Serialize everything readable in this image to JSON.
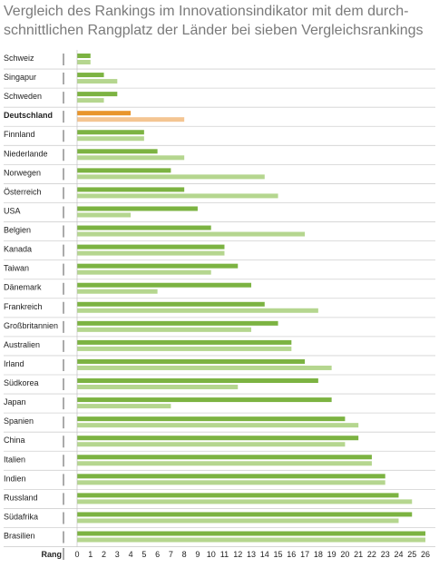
{
  "title_line1": "Vergleich des Rankings im Innovationsindikator mit dem durch-",
  "title_line2": "schnittlichen Rangplatz der Länder bei sieben Vergleichsrankings",
  "colors": {
    "primary": "#7cb342",
    "secondary": "#b5d68f",
    "highlight_primary": "#e8952c",
    "highlight_secondary": "#f4c592",
    "separator": "#d0d0d0"
  },
  "chart_data": {
    "type": "bar",
    "orientation": "horizontal",
    "title": "Vergleich des Rankings im Innovationsindikator mit dem durch-schnittlichen Rangplatz der Länder bei sieben Vergleichsrankings",
    "xlabel": "Rang",
    "xlim": [
      0,
      26
    ],
    "xticks": [
      0,
      1,
      2,
      3,
      4,
      5,
      6,
      7,
      8,
      9,
      10,
      11,
      12,
      13,
      14,
      15,
      16,
      17,
      18,
      19,
      20,
      21,
      22,
      23,
      24,
      25,
      26
    ],
    "highlight": "Deutschland",
    "categories": [
      "Schweiz",
      "Singapur",
      "Schweden",
      "Deutschland",
      "Finnland",
      "Niederlande",
      "Norwegen",
      "Österreich",
      "USA",
      "Belgien",
      "Kanada",
      "Taiwan",
      "Dänemark",
      "Frankreich",
      "Großbritannien",
      "Australien",
      "Irland",
      "Südkorea",
      "Japan",
      "Spanien",
      "China",
      "Italien",
      "Indien",
      "Russland",
      "Südafrika",
      "Brasilien"
    ],
    "series": [
      {
        "values": [
          1,
          2,
          3,
          4,
          5,
          6,
          7,
          8,
          9,
          10,
          11,
          12,
          13,
          14,
          15,
          16,
          17,
          18,
          19,
          20,
          21,
          22,
          23,
          24,
          25,
          26
        ]
      },
      {
        "values": [
          1,
          3,
          2,
          8,
          5,
          8,
          14,
          15,
          4,
          17,
          11,
          10,
          6,
          18,
          13,
          16,
          19,
          12,
          7,
          21,
          20,
          22,
          23,
          25,
          24,
          26
        ]
      }
    ]
  }
}
